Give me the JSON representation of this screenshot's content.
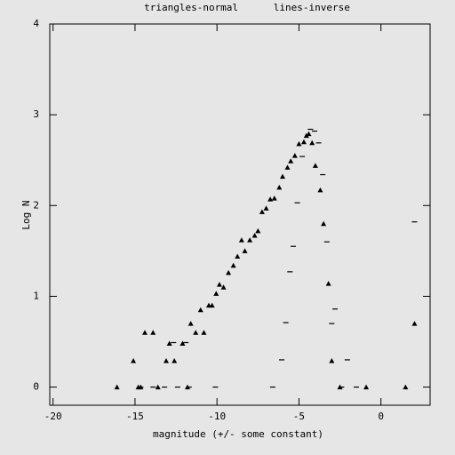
{
  "chart_data": {
    "type": "scatter",
    "title": "triangles-normal      lines-inverse",
    "xlabel": "magnitude (+/- some constant)",
    "ylabel": "Log N",
    "xlim": [
      -20.2,
      3
    ],
    "ylim": [
      -0.2,
      4
    ],
    "xticks": [
      -20,
      -15,
      -10,
      -5,
      0
    ],
    "yticks": [
      0,
      1,
      2,
      3,
      4
    ],
    "color": "#000000",
    "series": [
      {
        "marker": "triangle",
        "x": [
          -16.1,
          -15.1,
          -14.8,
          -14.65,
          -14.4,
          -13.9,
          -13.6,
          -13.1,
          -12.9,
          -12.6,
          -12.1,
          -11.8,
          -11.6,
          -11.3,
          -11.0,
          -10.8,
          -10.5,
          -10.3,
          -10.05,
          -9.85,
          -9.6,
          -9.3,
          -9.0,
          -8.75,
          -8.5,
          -8.3,
          -8.0,
          -7.7,
          -7.5,
          -7.25,
          -7.0,
          -6.75,
          -6.5,
          -6.2,
          -6.0,
          -5.7,
          -5.5,
          -5.25,
          -5.0,
          -4.7,
          -4.55,
          -4.4,
          -4.2,
          -4.0,
          -3.7,
          -3.5,
          -3.2,
          -3.0,
          -2.5,
          -0.9,
          1.5,
          2.05
        ],
        "values": [
          0,
          0.29,
          0,
          0,
          0.6,
          0.6,
          0,
          0.29,
          0.48,
          0.29,
          0.48,
          0,
          0.7,
          0.6,
          0.85,
          0.6,
          0.9,
          0.9,
          1.03,
          1.13,
          1.1,
          1.26,
          1.34,
          1.44,
          1.62,
          1.5,
          1.62,
          1.67,
          1.72,
          1.93,
          1.97,
          2.07,
          2.08,
          2.2,
          2.32,
          2.42,
          2.49,
          2.55,
          2.68,
          2.7,
          2.77,
          2.79,
          2.69,
          2.44,
          2.17,
          1.8,
          1.14,
          0.29,
          0,
          0,
          0,
          0.7
        ]
      },
      {
        "marker": "dash",
        "x": [
          -14.65,
          -13.9,
          -13.2,
          -12.65,
          -12.4,
          -11.9,
          -11.7,
          -10.1,
          -6.6,
          -6.05,
          -5.8,
          -5.55,
          -5.35,
          -5.1,
          -4.8,
          -4.3,
          -4.05,
          -3.8,
          -3.55,
          -3.3,
          -3.0,
          -2.8,
          -2.4,
          -2.05,
          -1.5,
          2.05
        ],
        "values": [
          0,
          0,
          0,
          0.49,
          0,
          0.49,
          0,
          0,
          0,
          0.3,
          0.71,
          1.27,
          1.55,
          2.03,
          2.54,
          2.84,
          2.82,
          2.69,
          2.34,
          1.6,
          0.7,
          0.86,
          0,
          0.3,
          0,
          1.82
        ]
      }
    ]
  }
}
